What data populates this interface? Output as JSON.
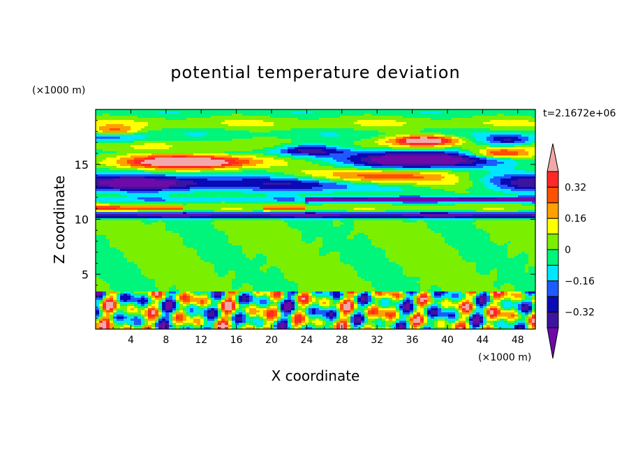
{
  "chart_data": {
    "type": "heatmap",
    "title": "potential temperature deviation",
    "xlabel": "X coordinate",
    "ylabel": "Z coordinate",
    "x_units": "(×1000 m)",
    "y_units": "(×1000 m)",
    "time_label": "t=2.1672e+06",
    "xlim": [
      0,
      50
    ],
    "ylim": [
      0,
      20
    ],
    "x_ticks": [
      4,
      8,
      12,
      16,
      20,
      24,
      28,
      32,
      36,
      40,
      44,
      48
    ],
    "y_ticks": [
      5,
      10,
      15
    ],
    "colorbar": {
      "levels": [
        -0.4,
        -0.32,
        -0.24,
        -0.16,
        -0.08,
        0,
        0.08,
        0.16,
        0.24,
        0.32,
        0.4
      ],
      "labeled_levels": [
        0.32,
        0.16,
        0,
        -0.16,
        -0.32
      ],
      "tick_labels": [
        "0.32",
        "0.16",
        "0",
        "−0.16",
        "−0.32"
      ],
      "colors": [
        "#6e0aa8",
        "#3c14a0",
        "#0a0ab4",
        "#1e5aff",
        "#00e6ff",
        "#00f57a",
        "#7bef00",
        "#ffff00",
        "#ffa000",
        "#ff5000",
        "#ff2828",
        "#f2a8a8"
      ],
      "extend": "both"
    },
    "regions": [
      {
        "name": "stratified-band",
        "z_range": [
          12.6,
          14.1
        ],
        "sign": "negative",
        "approx_value": -0.36
      },
      {
        "name": "warm-layer",
        "z_range": [
          14.4,
          16.0
        ],
        "x_range": [
          0,
          21
        ],
        "sign": "positive",
        "approx_value": 0.42
      },
      {
        "name": "warm-layer",
        "z_range": [
          12.3,
          14.8
        ],
        "x_range": [
          23,
          50
        ],
        "sign": "positive",
        "approx_value": 0.42
      },
      {
        "name": "cold-core",
        "z_range": [
          14.5,
          16.2
        ],
        "x_range": [
          29,
          45
        ],
        "sign": "negative",
        "approx_value": -0.42
      },
      {
        "name": "thin-cold-layer",
        "z_range": [
          10.1,
          10.6
        ],
        "sign": "negative",
        "approx_value": -0.36
      },
      {
        "name": "boundary-layer-turbulence",
        "z_range": [
          0,
          3.4
        ],
        "sign": "mixed",
        "approx_value": 0
      }
    ]
  }
}
